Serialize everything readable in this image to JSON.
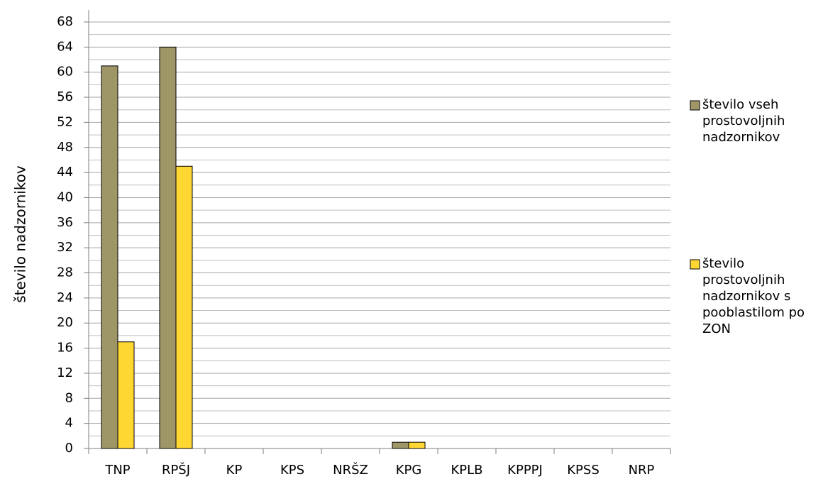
{
  "chart_data": {
    "type": "bar",
    "y_label": "število nadzornikov",
    "categories": [
      "TNP",
      "RPŠJ",
      "KP",
      "KPS",
      "NRŠZ",
      "KPG",
      "KPLB",
      "KPPPJ",
      "KPSS",
      "NRP"
    ],
    "series": [
      {
        "name": "število vseh prostovoljnih nadzornikov",
        "color": "#9f9668",
        "values": [
          61,
          64,
          0,
          0,
          0,
          1,
          0,
          0,
          0,
          0
        ]
      },
      {
        "name": "število prostovoljnih nadzornikov s pooblastilom po ZON",
        "color": "#ffd733",
        "values": [
          17,
          45,
          0,
          0,
          0,
          1,
          0,
          0,
          0,
          0
        ]
      }
    ],
    "ylim": [
      0,
      68
    ],
    "yticks": [
      0,
      4,
      8,
      12,
      16,
      20,
      24,
      28,
      32,
      36,
      40,
      44,
      48,
      52,
      56,
      60,
      64,
      68
    ],
    "grid": true,
    "legend": "right"
  }
}
